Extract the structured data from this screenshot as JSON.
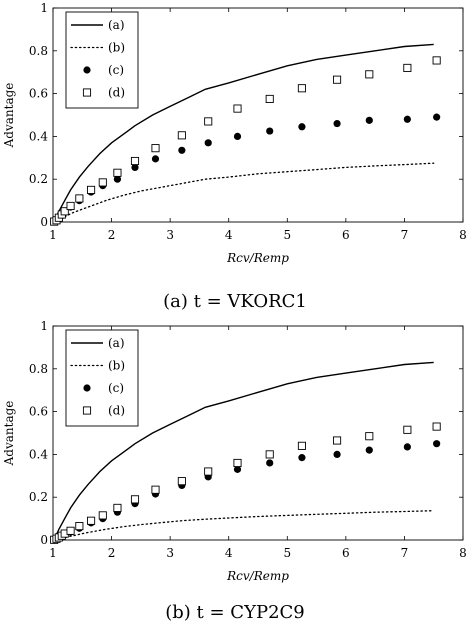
{
  "chart_data": [
    {
      "type": "line",
      "caption": "(a) t = VKORC1",
      "xlabel": "Rcv/Remp",
      "ylabel": "Advantage",
      "xlim": [
        1,
        8
      ],
      "ylim": [
        0,
        1
      ],
      "xticks": [
        "1",
        "2",
        "3",
        "4",
        "5",
        "6",
        "7",
        "8"
      ],
      "yticks": [
        "0",
        "0.2",
        "0.4",
        "0.6",
        "0.8",
        "1"
      ],
      "legend_position": "top-left",
      "series": [
        {
          "name": "(a)",
          "style": "solid-line",
          "x": [
            1.0,
            1.05,
            1.1,
            1.2,
            1.3,
            1.45,
            1.6,
            1.8,
            2.0,
            2.2,
            2.4,
            2.7,
            3.0,
            3.3,
            3.6,
            4.0,
            4.5,
            5.0,
            5.5,
            6.0,
            6.5,
            7.0,
            7.5
          ],
          "y": [
            0.0,
            0.02,
            0.05,
            0.1,
            0.15,
            0.21,
            0.26,
            0.32,
            0.37,
            0.41,
            0.45,
            0.5,
            0.54,
            0.58,
            0.62,
            0.65,
            0.69,
            0.73,
            0.76,
            0.78,
            0.8,
            0.82,
            0.83
          ]
        },
        {
          "name": "(b)",
          "style": "dotted-line",
          "x": [
            1.0,
            1.1,
            1.2,
            1.35,
            1.5,
            1.7,
            1.9,
            2.2,
            2.5,
            2.8,
            3.2,
            3.6,
            4.0,
            4.5,
            5.0,
            5.5,
            6.0,
            6.5,
            7.0,
            7.5
          ],
          "y": [
            0.0,
            0.01,
            0.025,
            0.045,
            0.06,
            0.08,
            0.1,
            0.125,
            0.145,
            0.16,
            0.18,
            0.2,
            0.21,
            0.225,
            0.235,
            0.245,
            0.255,
            0.262,
            0.268,
            0.275
          ]
        },
        {
          "name": "(c)",
          "style": "filled-circle",
          "x": [
            1.02,
            1.06,
            1.1,
            1.15,
            1.2,
            1.3,
            1.45,
            1.65,
            1.85,
            2.1,
            2.4,
            2.75,
            3.2,
            3.65,
            4.15,
            4.7,
            5.25,
            5.85,
            6.4,
            7.05,
            7.55
          ],
          "y": [
            0.002,
            0.008,
            0.018,
            0.03,
            0.045,
            0.07,
            0.1,
            0.14,
            0.17,
            0.2,
            0.255,
            0.295,
            0.335,
            0.37,
            0.4,
            0.425,
            0.445,
            0.46,
            0.475,
            0.48,
            0.49
          ]
        },
        {
          "name": "(d)",
          "style": "open-square",
          "x": [
            1.02,
            1.06,
            1.1,
            1.15,
            1.2,
            1.3,
            1.45,
            1.65,
            1.85,
            2.1,
            2.4,
            2.75,
            3.2,
            3.65,
            4.15,
            4.7,
            5.25,
            5.85,
            6.4,
            7.05,
            7.55
          ],
          "y": [
            0.002,
            0.008,
            0.02,
            0.035,
            0.05,
            0.075,
            0.11,
            0.15,
            0.185,
            0.23,
            0.285,
            0.345,
            0.405,
            0.47,
            0.53,
            0.575,
            0.625,
            0.665,
            0.69,
            0.72,
            0.755
          ]
        }
      ]
    },
    {
      "type": "line",
      "caption": "(b) t = CYP2C9",
      "xlabel": "Rcv/Remp",
      "ylabel": "Advantage",
      "xlim": [
        1,
        8
      ],
      "ylim": [
        0,
        1
      ],
      "xticks": [
        "1",
        "2",
        "3",
        "4",
        "5",
        "6",
        "7",
        "8"
      ],
      "yticks": [
        "0",
        "0.2",
        "0.4",
        "0.6",
        "0.8",
        "1"
      ],
      "legend_position": "top-left",
      "series": [
        {
          "name": "(a)",
          "style": "solid-line",
          "x": [
            1.0,
            1.05,
            1.1,
            1.2,
            1.3,
            1.45,
            1.6,
            1.8,
            2.0,
            2.2,
            2.4,
            2.7,
            3.0,
            3.3,
            3.6,
            4.0,
            4.5,
            5.0,
            5.5,
            6.0,
            6.5,
            7.0,
            7.5
          ],
          "y": [
            0.0,
            0.02,
            0.05,
            0.1,
            0.15,
            0.21,
            0.26,
            0.32,
            0.37,
            0.41,
            0.45,
            0.5,
            0.54,
            0.58,
            0.62,
            0.65,
            0.69,
            0.73,
            0.76,
            0.78,
            0.8,
            0.82,
            0.83
          ]
        },
        {
          "name": "(b)",
          "style": "dotted-line",
          "x": [
            1.0,
            1.1,
            1.2,
            1.35,
            1.5,
            1.7,
            1.9,
            2.2,
            2.5,
            2.8,
            3.2,
            3.6,
            4.0,
            4.5,
            5.0,
            5.5,
            6.0,
            6.5,
            7.0,
            7.5
          ],
          "y": [
            0.0,
            0.005,
            0.012,
            0.02,
            0.03,
            0.04,
            0.05,
            0.062,
            0.072,
            0.08,
            0.09,
            0.097,
            0.103,
            0.11,
            0.115,
            0.12,
            0.125,
            0.13,
            0.133,
            0.137
          ]
        },
        {
          "name": "(c)",
          "style": "filled-circle",
          "x": [
            1.02,
            1.06,
            1.1,
            1.15,
            1.2,
            1.3,
            1.45,
            1.65,
            1.85,
            2.1,
            2.4,
            2.75,
            3.2,
            3.65,
            4.15,
            4.7,
            5.25,
            5.85,
            6.4,
            7.05,
            7.55
          ],
          "y": [
            0.001,
            0.005,
            0.01,
            0.017,
            0.025,
            0.037,
            0.055,
            0.08,
            0.1,
            0.13,
            0.17,
            0.215,
            0.255,
            0.295,
            0.33,
            0.36,
            0.385,
            0.4,
            0.42,
            0.435,
            0.45
          ]
        },
        {
          "name": "(d)",
          "style": "open-square",
          "x": [
            1.02,
            1.06,
            1.1,
            1.15,
            1.2,
            1.3,
            1.45,
            1.65,
            1.85,
            2.1,
            2.4,
            2.75,
            3.2,
            3.65,
            4.15,
            4.7,
            5.25,
            5.85,
            6.4,
            7.05,
            7.55
          ],
          "y": [
            0.001,
            0.006,
            0.012,
            0.02,
            0.03,
            0.043,
            0.065,
            0.09,
            0.115,
            0.15,
            0.19,
            0.235,
            0.275,
            0.32,
            0.36,
            0.4,
            0.44,
            0.465,
            0.485,
            0.515,
            0.53
          ]
        }
      ]
    }
  ]
}
